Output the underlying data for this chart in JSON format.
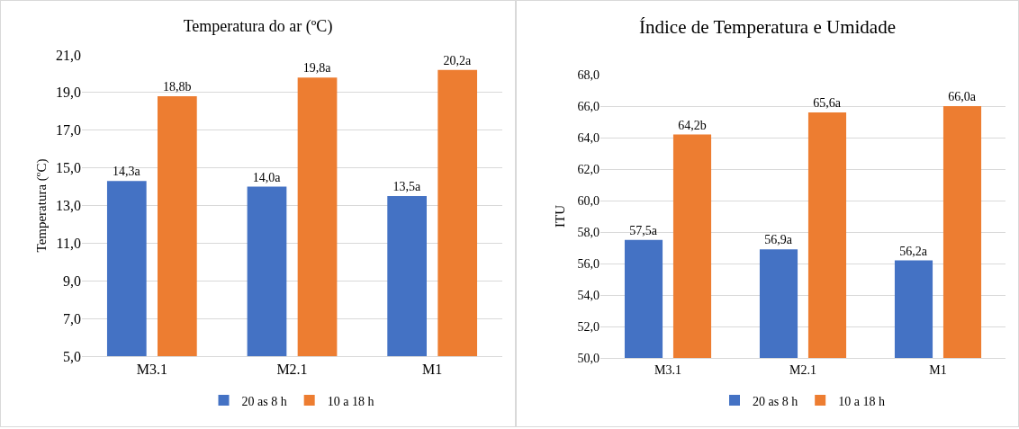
{
  "chart_data": [
    {
      "type": "bar",
      "title": "Temperatura do ar (ºC)",
      "ylabel": "Temperatura (ºC)",
      "categories": [
        "M3.1",
        "M2.1",
        "M1"
      ],
      "series": [
        {
          "name": "20 as 8 h",
          "color": "#4472c4",
          "values": [
            14.3,
            14.0,
            13.5
          ],
          "value_labels": [
            "14,3a",
            "14,0a",
            "13,5a"
          ]
        },
        {
          "name": "10 a 18 h",
          "color": "#ed7d31",
          "values": [
            18.8,
            19.8,
            20.2
          ],
          "value_labels": [
            "18,8b",
            "19,8a",
            "20,2a"
          ]
        }
      ],
      "ylim": [
        5,
        21
      ],
      "yticks": [
        {
          "value": 5,
          "label": "5,0"
        },
        {
          "value": 7,
          "label": "7,0"
        },
        {
          "value": 9,
          "label": "9,0"
        },
        {
          "value": 11,
          "label": "11,0"
        },
        {
          "value": 13,
          "label": "13,0"
        },
        {
          "value": 15,
          "label": "15,0"
        },
        {
          "value": 17,
          "label": "17,0"
        },
        {
          "value": 19,
          "label": "19,0"
        },
        {
          "value": 21,
          "label": "21,0"
        }
      ],
      "grid": "y",
      "legend": "bottom"
    },
    {
      "type": "bar",
      "title": "Índice de Temperatura e Umidade",
      "ylabel": "ITU",
      "categories": [
        "M3.1",
        "M2.1",
        "M1"
      ],
      "series": [
        {
          "name": "20 as 8 h",
          "color": "#4472c4",
          "values": [
            57.5,
            56.9,
            56.2
          ],
          "value_labels": [
            "57,5a",
            "56,9a",
            "56,2a"
          ]
        },
        {
          "name": "10 a 18 h",
          "color": "#ed7d31",
          "values": [
            64.2,
            65.6,
            66.0
          ],
          "value_labels": [
            "64,2b",
            "65,6a",
            "66,0a"
          ]
        }
      ],
      "ylim": [
        50,
        68
      ],
      "yticks": [
        {
          "value": 50,
          "label": "50,0"
        },
        {
          "value": 52,
          "label": "52,0"
        },
        {
          "value": 54,
          "label": "54,0"
        },
        {
          "value": 56,
          "label": "56,0"
        },
        {
          "value": 58,
          "label": "58,0"
        },
        {
          "value": 60,
          "label": "60,0"
        },
        {
          "value": 62,
          "label": "62,0"
        },
        {
          "value": 64,
          "label": "64,0"
        },
        {
          "value": 66,
          "label": "66,0"
        },
        {
          "value": 68,
          "label": "68,0"
        }
      ],
      "grid": "y",
      "legend": "bottom"
    }
  ]
}
